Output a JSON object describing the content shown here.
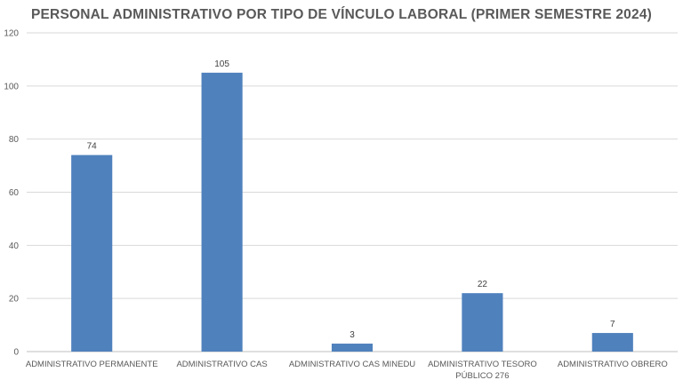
{
  "chart_data": {
    "type": "bar",
    "title": "PERSONAL ADMINISTRATIVO POR TIPO DE VÍNCULO LABORAL (PRIMER SEMESTRE 2024)",
    "categories": [
      [
        "ADMINISTRATIVO PERMANENTE"
      ],
      [
        "ADMINISTRATIVO CAS"
      ],
      [
        "ADMINISTRATIVO CAS MINEDU"
      ],
      [
        "ADMINISTRATIVO TESORO",
        "PÚBLICO 276"
      ],
      [
        "ADMINISTRATIVO OBRERO"
      ]
    ],
    "values": [
      74,
      105,
      3,
      22,
      7
    ],
    "ylim": [
      0,
      120
    ],
    "yticks": [
      0,
      20,
      40,
      60,
      80,
      100,
      120
    ],
    "grid": true,
    "legend": "none",
    "bar_color": "#4f81bd"
  }
}
